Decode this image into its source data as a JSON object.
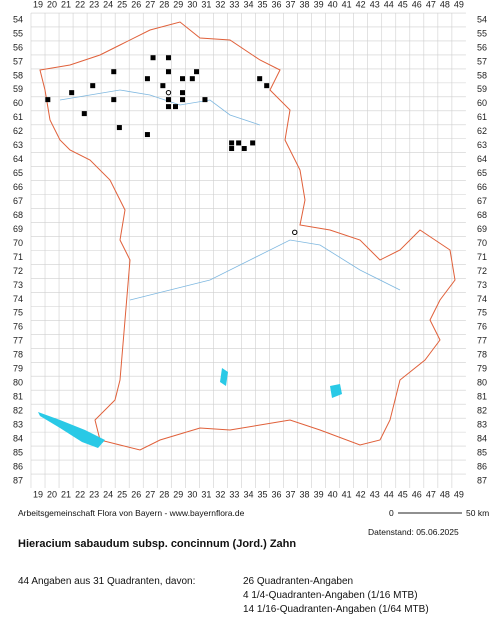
{
  "header": {
    "title": "Hieracium sabaudum subsp. concinnum (Jord.) Zahn"
  },
  "map": {
    "columns": [
      19,
      20,
      21,
      22,
      23,
      24,
      25,
      26,
      27,
      28,
      29,
      30,
      31,
      32,
      33,
      34,
      35,
      36,
      37,
      38,
      39,
      40,
      41,
      42,
      43,
      44,
      45,
      46,
      47,
      48,
      49
    ],
    "rows": [
      54,
      55,
      56,
      57,
      58,
      59,
      60,
      61,
      62,
      63,
      64,
      65,
      66,
      67,
      68,
      69,
      70,
      71,
      72,
      73,
      74,
      75,
      76,
      77,
      78,
      79,
      80,
      81,
      82,
      83,
      84,
      85,
      86,
      87
    ],
    "points": [
      [
        27.2,
        56.7
      ],
      [
        28.3,
        56.7
      ],
      [
        24.4,
        57.7
      ],
      [
        26.8,
        58.2
      ],
      [
        28.3,
        57.7
      ],
      [
        29.3,
        58.2
      ],
      [
        30.0,
        58.2
      ],
      [
        30.3,
        57.7
      ],
      [
        34.8,
        58.2
      ],
      [
        22.9,
        58.7
      ],
      [
        21.4,
        59.2
      ],
      [
        27.9,
        58.7
      ],
      [
        29.3,
        59.2
      ],
      [
        35.3,
        58.7
      ],
      [
        19.7,
        59.7
      ],
      [
        24.4,
        59.7
      ],
      [
        28.3,
        59.7
      ],
      [
        28.8,
        60.2
      ],
      [
        28.3,
        60.2
      ],
      [
        29.3,
        59.7
      ],
      [
        30.9,
        59.7
      ],
      [
        22.3,
        60.7
      ],
      [
        24.8,
        61.7
      ],
      [
        26.8,
        62.2
      ],
      [
        32.8,
        62.8
      ],
      [
        33.3,
        62.8
      ],
      [
        34.3,
        62.8
      ],
      [
        32.8,
        63.2
      ],
      [
        33.7,
        63.2
      ]
    ],
    "open_points": [
      [
        28.3,
        59.2
      ],
      [
        37.3,
        69.2
      ]
    ]
  },
  "footer": {
    "credit": "Arbeitsgemeinschaft Flora von Bayern - www.bayernflora.de",
    "scale_start": "0",
    "scale_end": "50 km",
    "date": "Datenstand: 05.06.2025",
    "summary": "44 Angaben aus 31 Quadranten, davon:",
    "details": [
      "26 Quadranten-Angaben",
      "4 1/4-Quadranten-Angaben (1/16 MTB)",
      "14 1/16-Quadranten-Angaben (1/64 MTB)"
    ]
  }
}
